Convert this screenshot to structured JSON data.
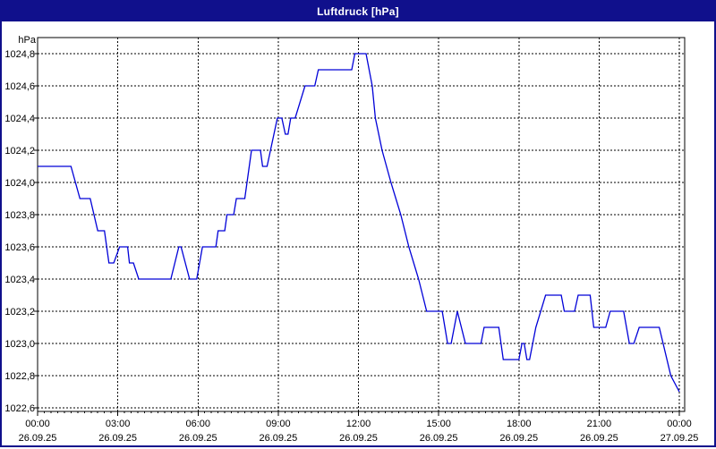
{
  "window": {
    "title": "Luftdruck [hPa]",
    "titlebar_color": "#10108c",
    "frame_border_color": "#10108c"
  },
  "chart_data": {
    "type": "line",
    "title": "Luftdruck [hPa]",
    "ylabel": "hPa",
    "xlabel": "",
    "legend": "none",
    "grid": "on-dashed",
    "background_color": "#ffffff",
    "line_color": "#0000d8",
    "grid_color": "#000000",
    "ylim": [
      1022.59,
      1024.9
    ],
    "xlim_minutes": [
      0,
      1440
    ],
    "x_minor_tick_minutes": 15,
    "y_ticks": [
      {
        "label": "1024,8",
        "value": 1024.8
      },
      {
        "label": "1024,6",
        "value": 1024.6
      },
      {
        "label": "1024,4",
        "value": 1024.4
      },
      {
        "label": "1024,2",
        "value": 1024.2
      },
      {
        "label": "1024,0",
        "value": 1024.0
      },
      {
        "label": "1023,8",
        "value": 1023.8
      },
      {
        "label": "1023,6",
        "value": 1023.6
      },
      {
        "label": "1023,4",
        "value": 1023.4
      },
      {
        "label": "1023,2",
        "value": 1023.2
      },
      {
        "label": "1023,0",
        "value": 1023.0
      },
      {
        "label": "1022,8",
        "value": 1022.8
      },
      {
        "label": "1022,6",
        "value": 1022.6
      }
    ],
    "x_ticks": [
      {
        "minutes": 0,
        "time": "00:00",
        "date": "26.09.25"
      },
      {
        "minutes": 180,
        "time": "03:00",
        "date": "26.09.25"
      },
      {
        "minutes": 360,
        "time": "06:00",
        "date": "26.09.25"
      },
      {
        "minutes": 540,
        "time": "09:00",
        "date": "26.09.25"
      },
      {
        "minutes": 720,
        "time": "12:00",
        "date": "26.09.25"
      },
      {
        "minutes": 900,
        "time": "15:00",
        "date": "26.09.25"
      },
      {
        "minutes": 1080,
        "time": "18:00",
        "date": "26.09.25"
      },
      {
        "minutes": 1260,
        "time": "21:00",
        "date": "26.09.25"
      },
      {
        "minutes": 1440,
        "time": "00:00",
        "date": "27.09.25"
      }
    ],
    "series": [
      {
        "name": "Luftdruck",
        "unit": "hPa",
        "points": [
          [
            0,
            1024.1
          ],
          [
            75,
            1024.1
          ],
          [
            95,
            1023.9
          ],
          [
            118,
            1023.9
          ],
          [
            135,
            1023.7
          ],
          [
            150,
            1023.7
          ],
          [
            160,
            1023.5
          ],
          [
            171,
            1023.5
          ],
          [
            184,
            1023.6
          ],
          [
            202,
            1023.6
          ],
          [
            206,
            1023.5
          ],
          [
            215,
            1023.5
          ],
          [
            227,
            1023.4
          ],
          [
            299,
            1023.4
          ],
          [
            317,
            1023.6
          ],
          [
            322,
            1023.6
          ],
          [
            341,
            1023.4
          ],
          [
            357,
            1023.4
          ],
          [
            370,
            1023.6
          ],
          [
            400,
            1023.6
          ],
          [
            405,
            1023.7
          ],
          [
            420,
            1023.7
          ],
          [
            425,
            1023.8
          ],
          [
            440,
            1023.8
          ],
          [
            446,
            1023.9
          ],
          [
            465,
            1023.9
          ],
          [
            480,
            1024.2
          ],
          [
            500,
            1024.2
          ],
          [
            505,
            1024.1
          ],
          [
            515,
            1024.1
          ],
          [
            538,
            1024.4
          ],
          [
            548,
            1024.4
          ],
          [
            556,
            1024.3
          ],
          [
            562,
            1024.3
          ],
          [
            568,
            1024.4
          ],
          [
            578,
            1024.4
          ],
          [
            600,
            1024.6
          ],
          [
            622,
            1024.6
          ],
          [
            630,
            1024.7
          ],
          [
            705,
            1024.7
          ],
          [
            712,
            1024.8
          ],
          [
            737,
            1024.8
          ],
          [
            751,
            1024.6
          ],
          [
            758,
            1024.4
          ],
          [
            773,
            1024.2
          ],
          [
            793,
            1024.0
          ],
          [
            815,
            1023.8
          ],
          [
            833,
            1023.6
          ],
          [
            855,
            1023.4
          ],
          [
            873,
            1023.2
          ],
          [
            908,
            1023.2
          ],
          [
            920,
            1023.0
          ],
          [
            928,
            1023.0
          ],
          [
            942,
            1023.2
          ],
          [
            960,
            1023.0
          ],
          [
            995,
            1023.0
          ],
          [
            1002,
            1023.1
          ],
          [
            1035,
            1023.1
          ],
          [
            1045,
            1022.9
          ],
          [
            1080,
            1022.9
          ],
          [
            1087,
            1023.0
          ],
          [
            1092,
            1023.0
          ],
          [
            1098,
            1022.9
          ],
          [
            1104,
            1022.9
          ],
          [
            1118,
            1023.1
          ],
          [
            1140,
            1023.3
          ],
          [
            1175,
            1023.3
          ],
          [
            1182,
            1023.2
          ],
          [
            1205,
            1023.2
          ],
          [
            1213,
            1023.3
          ],
          [
            1240,
            1023.3
          ],
          [
            1248,
            1023.1
          ],
          [
            1275,
            1023.1
          ],
          [
            1285,
            1023.2
          ],
          [
            1315,
            1023.2
          ],
          [
            1328,
            1023.0
          ],
          [
            1338,
            1023.0
          ],
          [
            1350,
            1023.1
          ],
          [
            1395,
            1023.1
          ],
          [
            1421,
            1022.8
          ],
          [
            1440,
            1022.7
          ]
        ]
      }
    ]
  }
}
